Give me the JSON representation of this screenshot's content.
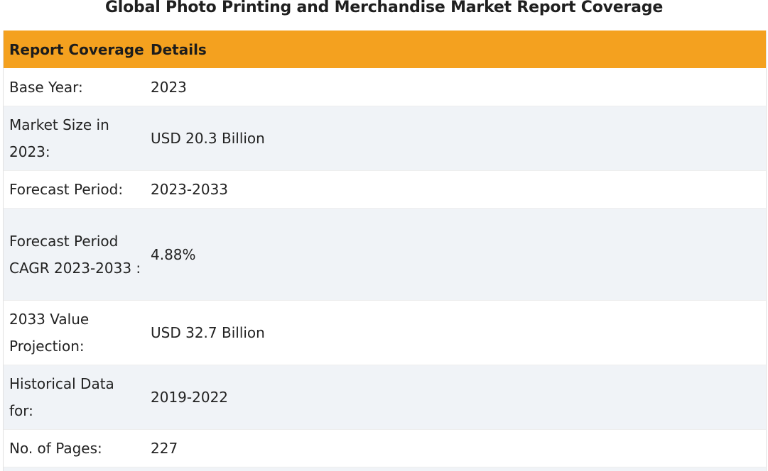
{
  "page": {
    "title": "Global Photo Printing and Merchandise Market Report Coverage"
  },
  "table": {
    "headers": [
      "Report Coverage",
      "Details"
    ],
    "rows": [
      {
        "label": "Base Year:",
        "value": "2023"
      },
      {
        "label": "Market Size in 2023:",
        "value": "USD 20.3 Billion"
      },
      {
        "label": "Forecast Period:",
        "value": "2023-2033"
      },
      {
        "label": "Forecast Period CAGR 2023-2033 :",
        "value": "4.88%"
      },
      {
        "label": "2033 Value Projection:",
        "value": "USD 32.7 Billion"
      },
      {
        "label": "Historical Data for:",
        "value": "2019-2022"
      },
      {
        "label": "No. of Pages:",
        "value": "227"
      }
    ]
  },
  "colors": {
    "header_bg": "#f4a11f",
    "row_alt_bg": "#f0f3f7"
  }
}
